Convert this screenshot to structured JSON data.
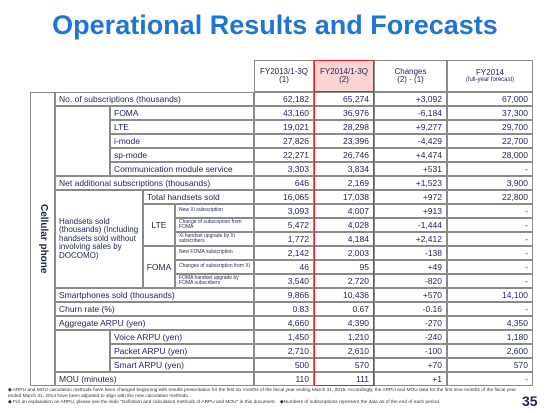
{
  "header": {
    "title": "Operational Results and Forecasts"
  },
  "table": {
    "columns": [
      {
        "line1": "FY2013/1-3Q",
        "line2": "(1)"
      },
      {
        "line1": "FY2014/1-3Q",
        "line2": "(2)"
      },
      {
        "line1": "Changes",
        "line2": "(2) - (1)"
      },
      {
        "line1": "FY2014",
        "line2": "(full-year forecast)"
      }
    ],
    "section": "Cellular phone",
    "groups": {
      "handsets": "Handsets sold (thousands) (Including handsets sold without involving sales by DOCOMO)",
      "lte": "LTE",
      "foma": "FOMA"
    },
    "rows": [
      {
        "label": "No. of subscriptions (thousands)",
        "values": [
          "62,182",
          "65,274",
          "+3,092",
          "67,000"
        ]
      },
      {
        "label": "FOMA",
        "values": [
          "43,160",
          "36,976",
          "-6,184",
          "37,300"
        ]
      },
      {
        "label": "LTE",
        "values": [
          "19,021",
          "28,298",
          "+9,277",
          "29,700"
        ]
      },
      {
        "label": "i-mode",
        "values": [
          "27,826",
          "23,396",
          "-4,429",
          "22,700"
        ]
      },
      {
        "label": "sp-mode",
        "values": [
          "22,271",
          "26,746",
          "+4,474",
          "28,000"
        ]
      },
      {
        "label": "Communication module service",
        "values": [
          "3,303",
          "3,834",
          "+531",
          "-"
        ]
      },
      {
        "label": "Net additional subscriptions (thousands)",
        "values": [
          "646",
          "2,169",
          "+1,523",
          "3,900"
        ]
      },
      {
        "label": "Total handsets sold",
        "values": [
          "16,065",
          "17,038",
          "+972",
          "22,800"
        ]
      },
      {
        "label": "New Xi subscription",
        "values": [
          "3,093",
          "4,007",
          "+913",
          "-"
        ]
      },
      {
        "label": "Change of subscription from FOMA",
        "values": [
          "5,472",
          "4,028",
          "-1,444",
          "-"
        ]
      },
      {
        "label": "Xi handset upgrade by Xi subscribers",
        "values": [
          "1,772",
          "4,184",
          "+2,412",
          "-"
        ]
      },
      {
        "label": "New FOMA subscription",
        "values": [
          "2,142",
          "2,003",
          "-138",
          "-"
        ]
      },
      {
        "label": "Changes of subscription from Xi",
        "values": [
          "46",
          "95",
          "+49",
          "-"
        ]
      },
      {
        "label": "FOMA handset upgrade by FOMA subscribers",
        "values": [
          "3,540",
          "2,720",
          "-820",
          "-"
        ]
      },
      {
        "label": "Smartphones sold (thousands)",
        "values": [
          "9,866",
          "10,436",
          "+570",
          "14,100"
        ]
      },
      {
        "label": "Churn rate (%)",
        "values": [
          "0.83",
          "0.67",
          "-0.16",
          "-"
        ]
      },
      {
        "label": "Aggregate ARPU (yen)",
        "values": [
          "4,660",
          "4,390",
          "-270",
          "4,350"
        ]
      },
      {
        "label": "Voice ARPU (yen)",
        "values": [
          "1,450",
          "1,210",
          "-240",
          "1,180"
        ]
      },
      {
        "label": "Packet ARPU (yen)",
        "values": [
          "2,710",
          "2,610",
          "-100",
          "2,600"
        ]
      },
      {
        "label": "Smart ARPU (yen)",
        "values": [
          "500",
          "570",
          "+70",
          "570"
        ]
      },
      {
        "label": "MOU (minutes)",
        "values": [
          "110",
          "111",
          "+1",
          "-"
        ]
      }
    ]
  },
  "footnotes": [
    "◆ ARPU and MOU calculation methods have been changed beginning with results presentation for the first six months of the fiscal year ending March 31, 2015. Accordingly, the ARPU and MOU data for the first nine months of the fiscal year ended March 31, 2014 have been adjusted to align with the new calculation methods.",
    "◆ For an explanation on ARPU, please see the slide \"Definition and calculation methods of ARPU and MOU\" in this document.",
    "◆Numbers of subscriptions represent the data as of the end of each period."
  ],
  "page_number": "35"
}
